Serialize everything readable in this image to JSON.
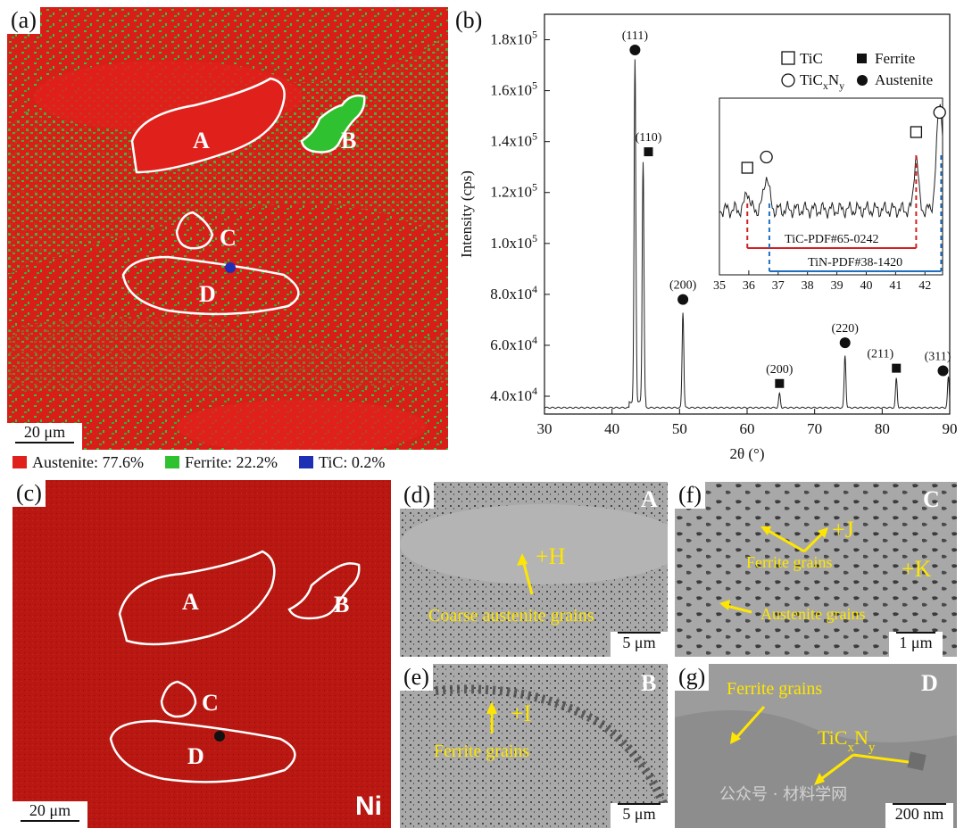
{
  "figure": {
    "panels": {
      "a": {
        "label": "(a)",
        "regions": [
          "A",
          "B",
          "C",
          "D"
        ],
        "scalebar": "20 μm",
        "legend": [
          {
            "text": "Austenite: 77.6%",
            "color": "#E0201B"
          },
          {
            "text": "Ferrite: 22.2%",
            "color": "#2FC12F"
          },
          {
            "text": "TiC: 0.2%",
            "color": "#1F2FB5"
          }
        ]
      },
      "b": {
        "label": "(b)"
      },
      "c": {
        "label": "(c)",
        "regions": [
          "A",
          "B",
          "C",
          "D"
        ],
        "scalebar": "20 μm",
        "element": "Ni"
      },
      "d": {
        "label": "(d)",
        "corner": "A",
        "point": "+H",
        "note": "Coarse austenite grains",
        "scalebar": "5 μm"
      },
      "e": {
        "label": "(e)",
        "corner": "B",
        "point": "+I",
        "note": "Ferrite grains",
        "scalebar": "5 μm"
      },
      "f": {
        "label": "(f)",
        "corner": "C",
        "point_j": "+J",
        "point_k": "+K",
        "note1": "Ferrite grains",
        "note2": "Austenite grains",
        "scalebar": "1 μm"
      },
      "g": {
        "label": "(g)",
        "corner": "D",
        "note1": "Ferrite grains",
        "note2": "TiCxNy",
        "scalebar": "200 nm"
      }
    },
    "watermark": "公众号 · 材料学网"
  },
  "chart_data": {
    "type": "line",
    "xlabel": "2θ (°)",
    "ylabel": "Intensity (cps)",
    "xlim": [
      30,
      90
    ],
    "ylim": [
      33000,
      190000
    ],
    "x_ticks": [
      30,
      40,
      50,
      60,
      70,
      80,
      90
    ],
    "y_ticks": [
      {
        "v": 40000,
        "label": "4.0x10⁴"
      },
      {
        "v": 60000,
        "label": "6.0x10⁴"
      },
      {
        "v": 80000,
        "label": "8.0x10⁴"
      },
      {
        "v": 100000,
        "label": "1.0x10⁵"
      },
      {
        "v": 120000,
        "label": "1.2x10⁵"
      },
      {
        "v": 140000,
        "label": "1.4x10⁵"
      },
      {
        "v": 160000,
        "label": "1.6x10⁵"
      },
      {
        "v": 180000,
        "label": "1.8x10⁵"
      }
    ],
    "baseline": 35500,
    "peaks": [
      {
        "x": 43.4,
        "y": 170000,
        "label": "(111)",
        "phase": "Austenite"
      },
      {
        "x": 44.6,
        "y": 130000,
        "label": "(110)",
        "phase": "Ferrite"
      },
      {
        "x": 50.5,
        "y": 73000,
        "label": "(200)",
        "phase": "Austenite"
      },
      {
        "x": 64.8,
        "y": 41000,
        "label": "(200)",
        "phase": "Ferrite"
      },
      {
        "x": 74.5,
        "y": 56000,
        "label": "(220)",
        "phase": "Austenite"
      },
      {
        "x": 82.1,
        "y": 47000,
        "label": "(211)",
        "phase": "Ferrite"
      },
      {
        "x": 89.8,
        "y": 47500,
        "label": "(311)",
        "phase": "Austenite"
      }
    ],
    "legend": [
      {
        "symbol": "open-square",
        "text": "TiC"
      },
      {
        "symbol": "filled-square",
        "text": "Ferrite"
      },
      {
        "symbol": "open-circle",
        "text": "TiC",
        "sub1": "x",
        "mid": "N",
        "sub2": "y"
      },
      {
        "symbol": "filled-circle",
        "text": "Austenite"
      }
    ],
    "inset": {
      "xlim": [
        35,
        42.6
      ],
      "x_ticks": [
        35,
        36,
        37,
        38,
        39,
        40,
        41,
        42
      ],
      "ref_lines": [
        {
          "label": "TiC-PDF#65-0242",
          "from": 35.95,
          "to": 41.7,
          "color": "#D42020"
        },
        {
          "label": "TiN-PDF#38-1420",
          "from": 36.7,
          "to": 42.55,
          "color": "#1F6FC1"
        }
      ],
      "peaks": [
        {
          "x": 35.95,
          "phase": "TiC"
        },
        {
          "x": 36.6,
          "phase": "TiCxNy"
        },
        {
          "x": 41.7,
          "phase": "TiC"
        },
        {
          "x": 42.5,
          "phase": "TiCxNy"
        }
      ]
    }
  }
}
